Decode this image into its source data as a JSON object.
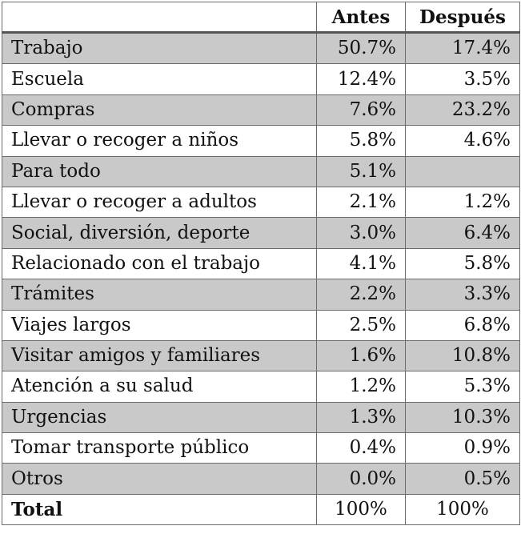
{
  "table": {
    "headers": [
      "",
      "Antes",
      "Después"
    ],
    "rows": [
      {
        "label": "Trabajo",
        "antes": "50.7%",
        "despues": "17.4%",
        "shaded": true
      },
      {
        "label": "Escuela",
        "antes": "12.4%",
        "despues": "3.5%",
        "shaded": false
      },
      {
        "label": "Compras",
        "antes": "7.6%",
        "despues": "23.2%",
        "shaded": true
      },
      {
        "label": "Llevar o recoger a niños",
        "antes": "5.8%",
        "despues": "4.6%",
        "shaded": false
      },
      {
        "label": "Para todo",
        "antes": "5.1%",
        "despues": "",
        "shaded": true
      },
      {
        "label": "Llevar o recoger a adultos",
        "antes": "2.1%",
        "despues": "1.2%",
        "shaded": false
      },
      {
        "label": "Social, diversión, deporte",
        "antes": "3.0%",
        "despues": "6.4%",
        "shaded": true
      },
      {
        "label": "Relacionado con el trabajo",
        "antes": "4.1%",
        "despues": "5.8%",
        "shaded": false
      },
      {
        "label": "Trámites",
        "antes": "2.2%",
        "despues": "3.3%",
        "shaded": true
      },
      {
        "label": "Viajes largos",
        "antes": "2.5%",
        "despues": "6.8%",
        "shaded": false
      },
      {
        "label": "Visitar amigos y familiares",
        "antes": "1.6%",
        "despues": "10.8%",
        "shaded": true
      },
      {
        "label": "Atención a su salud",
        "antes": "1.2%",
        "despues": "5.3%",
        "shaded": false
      },
      {
        "label": "Urgencias",
        "antes": "1.3%",
        "despues": "10.3%",
        "shaded": true
      },
      {
        "label": "Tomar transporte público",
        "antes": "0.4%",
        "despues": "0.9%",
        "shaded": false
      },
      {
        "label": "Otros",
        "antes": "0.0%",
        "despues": "0.5%",
        "shaded": true
      }
    ],
    "total": {
      "label": "Total",
      "antes": "100%",
      "despues": "100%"
    },
    "colors": {
      "shade": "#c9c9c9",
      "border": "#6b6b6b"
    }
  }
}
